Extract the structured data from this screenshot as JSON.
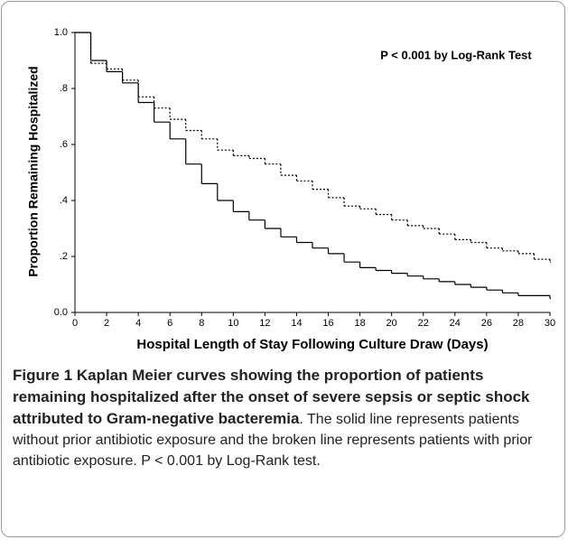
{
  "chart_data": {
    "type": "step",
    "annotation": "P < 0.001 by Log-Rank Test",
    "x_label": "Hospital Length of Stay Following Culture Draw (Days)",
    "y_label": "Proportion Remaining Hospitalized",
    "x": [
      0,
      1,
      2,
      3,
      4,
      5,
      6,
      7,
      8,
      9,
      10,
      11,
      12,
      13,
      14,
      15,
      16,
      17,
      18,
      19,
      20,
      21,
      22,
      23,
      24,
      25,
      26,
      27,
      28,
      29,
      30
    ],
    "series": [
      {
        "color": "#000000",
        "line_style": "solid",
        "values": [
          1.0,
          0.9,
          0.86,
          0.82,
          0.75,
          0.68,
          0.62,
          0.53,
          0.46,
          0.4,
          0.36,
          0.33,
          0.3,
          0.27,
          0.25,
          0.23,
          0.21,
          0.18,
          0.16,
          0.15,
          0.14,
          0.13,
          0.12,
          0.11,
          0.1,
          0.09,
          0.08,
          0.07,
          0.06,
          0.06,
          0.05
        ]
      },
      {
        "color": "#000000",
        "line_style": "dotted",
        "values": [
          1.0,
          0.89,
          0.87,
          0.83,
          0.77,
          0.73,
          0.69,
          0.65,
          0.62,
          0.58,
          0.56,
          0.55,
          0.53,
          0.49,
          0.47,
          0.44,
          0.41,
          0.38,
          0.37,
          0.35,
          0.33,
          0.31,
          0.3,
          0.28,
          0.26,
          0.25,
          0.23,
          0.22,
          0.21,
          0.19,
          0.18
        ]
      }
    ],
    "xlim": [
      0,
      30
    ],
    "xticks": [
      0,
      2,
      4,
      6,
      8,
      10,
      12,
      14,
      16,
      18,
      20,
      22,
      24,
      26,
      28,
      30
    ],
    "ylim": [
      0,
      1
    ],
    "yticks": [
      {
        "value": 0,
        "label": "0.0"
      },
      {
        "value": 0.2,
        "label": ".2"
      },
      {
        "value": 0.4,
        "label": ".4"
      },
      {
        "value": 0.6,
        "label": ".6"
      },
      {
        "value": 0.8,
        "label": ".8"
      },
      {
        "value": 1,
        "label": "1.0"
      }
    ]
  },
  "caption": {
    "title": "Figure 1 Kaplan Meier curves showing the proportion of patients remaining hospitalized after the onset of severe sepsis or septic shock attributed to Gram-negative bacteremia",
    "text": ". The solid line represents patients without prior antibiotic exposure and the broken line represents patients with prior antibiotic exposure. P < 0.001 by Log-Rank test."
  }
}
